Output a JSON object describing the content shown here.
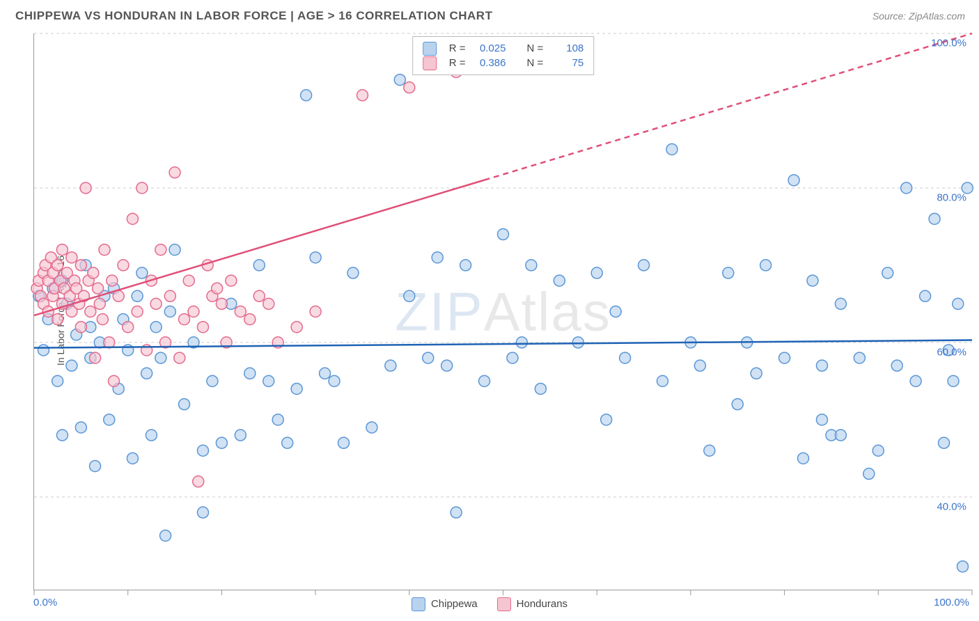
{
  "title": "CHIPPEWA VS HONDURAN IN LABOR FORCE | AGE > 16 CORRELATION CHART",
  "source_label": "Source: ZipAtlas.com",
  "y_axis_label": "In Labor Force | Age > 16",
  "watermark_zip": "ZIP",
  "watermark_atlas": "Atlas",
  "x_min_label": "0.0%",
  "x_max_label": "100.0%",
  "chart": {
    "type": "scatter",
    "background_color": "#ffffff",
    "grid_color": "#cccccc",
    "axis_color": "#999999",
    "xlim": [
      0,
      100
    ],
    "ylim": [
      28,
      100
    ],
    "y_gridlines": [
      40,
      60,
      80,
      100
    ],
    "y_tick_labels": [
      "40.0%",
      "60.0%",
      "80.0%",
      "100.0%"
    ],
    "x_ticks": [
      0,
      10,
      20,
      30,
      40,
      50,
      60,
      70,
      80,
      90,
      100
    ],
    "marker_radius": 8,
    "marker_stroke_width": 1.5,
    "trend_line_width": 2.5,
    "series": [
      {
        "name": "Chippewa",
        "fill_color": "#b9d2ee",
        "stroke_color": "#5a96d6",
        "fill_opacity": 0.65,
        "R": 0.025,
        "N": 108,
        "trend": {
          "x1": 0,
          "y1": 59.3,
          "x2": 100,
          "y2": 60.3,
          "color": "#1f63b5",
          "dash_from_x": null
        },
        "points": [
          [
            0.5,
            66
          ],
          [
            1,
            59
          ],
          [
            1.5,
            63
          ],
          [
            2,
            67
          ],
          [
            2.5,
            55
          ],
          [
            3,
            68
          ],
          [
            3,
            48
          ],
          [
            3.5,
            65
          ],
          [
            4,
            57
          ],
          [
            4.5,
            61
          ],
          [
            5,
            49
          ],
          [
            5.5,
            70
          ],
          [
            6,
            58
          ],
          [
            6,
            62
          ],
          [
            6.5,
            44
          ],
          [
            7,
            60
          ],
          [
            7.5,
            66
          ],
          [
            8,
            50
          ],
          [
            8.5,
            67
          ],
          [
            9,
            54
          ],
          [
            9.5,
            63
          ],
          [
            10,
            59
          ],
          [
            10.5,
            45
          ],
          [
            11,
            66
          ],
          [
            11.5,
            69
          ],
          [
            12,
            56
          ],
          [
            12.5,
            48
          ],
          [
            13,
            62
          ],
          [
            13.5,
            58
          ],
          [
            14,
            35
          ],
          [
            14.5,
            64
          ],
          [
            15,
            72
          ],
          [
            16,
            52
          ],
          [
            17,
            60
          ],
          [
            18,
            46
          ],
          [
            18,
            38
          ],
          [
            19,
            55
          ],
          [
            20,
            47
          ],
          [
            21,
            65
          ],
          [
            22,
            48
          ],
          [
            23,
            56
          ],
          [
            24,
            70
          ],
          [
            25,
            55
          ],
          [
            26,
            50
          ],
          [
            27,
            47
          ],
          [
            28,
            54
          ],
          [
            29,
            92
          ],
          [
            30,
            71
          ],
          [
            31,
            56
          ],
          [
            32,
            55
          ],
          [
            33,
            47
          ],
          [
            34,
            69
          ],
          [
            36,
            49
          ],
          [
            38,
            57
          ],
          [
            39,
            94
          ],
          [
            40,
            66
          ],
          [
            42,
            58
          ],
          [
            43,
            71
          ],
          [
            44,
            57
          ],
          [
            45,
            38
          ],
          [
            46,
            70
          ],
          [
            48,
            55
          ],
          [
            50,
            74
          ],
          [
            51,
            58
          ],
          [
            52,
            60
          ],
          [
            53,
            70
          ],
          [
            54,
            54
          ],
          [
            56,
            68
          ],
          [
            58,
            60
          ],
          [
            60,
            69
          ],
          [
            61,
            50
          ],
          [
            62,
            64
          ],
          [
            63,
            58
          ],
          [
            65,
            70
          ],
          [
            67,
            55
          ],
          [
            68,
            85
          ],
          [
            70,
            60
          ],
          [
            71,
            57
          ],
          [
            72,
            46
          ],
          [
            74,
            69
          ],
          [
            75,
            52
          ],
          [
            76,
            60
          ],
          [
            77,
            56
          ],
          [
            78,
            70
          ],
          [
            80,
            58
          ],
          [
            81,
            81
          ],
          [
            82,
            45
          ],
          [
            83,
            68
          ],
          [
            84,
            50
          ],
          [
            85,
            48
          ],
          [
            86,
            65
          ],
          [
            88,
            58
          ],
          [
            89,
            43
          ],
          [
            90,
            46
          ],
          [
            91,
            69
          ],
          [
            92,
            57
          ],
          [
            93,
            80
          ],
          [
            94,
            55
          ],
          [
            95,
            66
          ],
          [
            96,
            76
          ],
          [
            97,
            47
          ],
          [
            97.5,
            59
          ],
          [
            98,
            55
          ],
          [
            98.5,
            65
          ],
          [
            99,
            31
          ],
          [
            99.5,
            80
          ],
          [
            84,
            57
          ],
          [
            86,
            48
          ]
        ]
      },
      {
        "name": "Hondurans",
        "fill_color": "#f6c5d2",
        "stroke_color": "#e46a8c",
        "fill_opacity": 0.65,
        "R": 0.386,
        "N": 75,
        "trend": {
          "x1": 0,
          "y1": 63.5,
          "x2": 100,
          "y2": 100,
          "color": "#e05078",
          "dash_from_x": 48
        },
        "points": [
          [
            0.3,
            67
          ],
          [
            0.5,
            68
          ],
          [
            0.7,
            66
          ],
          [
            1,
            69
          ],
          [
            1,
            65
          ],
          [
            1.2,
            70
          ],
          [
            1.5,
            64
          ],
          [
            1.5,
            68
          ],
          [
            1.8,
            71
          ],
          [
            2,
            66
          ],
          [
            2,
            69
          ],
          [
            2.2,
            67
          ],
          [
            2.5,
            63
          ],
          [
            2.5,
            70
          ],
          [
            2.8,
            68
          ],
          [
            3,
            65
          ],
          [
            3,
            72
          ],
          [
            3.2,
            67
          ],
          [
            3.5,
            69
          ],
          [
            3.8,
            66
          ],
          [
            4,
            71
          ],
          [
            4,
            64
          ],
          [
            4.3,
            68
          ],
          [
            4.5,
            67
          ],
          [
            4.8,
            65
          ],
          [
            5,
            70
          ],
          [
            5,
            62
          ],
          [
            5.3,
            66
          ],
          [
            5.5,
            80
          ],
          [
            5.8,
            68
          ],
          [
            6,
            64
          ],
          [
            6.3,
            69
          ],
          [
            6.5,
            58
          ],
          [
            6.8,
            67
          ],
          [
            7,
            65
          ],
          [
            7.3,
            63
          ],
          [
            7.5,
            72
          ],
          [
            8,
            60
          ],
          [
            8.3,
            68
          ],
          [
            8.5,
            55
          ],
          [
            9,
            66
          ],
          [
            9.5,
            70
          ],
          [
            10,
            62
          ],
          [
            10.5,
            76
          ],
          [
            11,
            64
          ],
          [
            11.5,
            80
          ],
          [
            12,
            59
          ],
          [
            12.5,
            68
          ],
          [
            13,
            65
          ],
          [
            13.5,
            72
          ],
          [
            14,
            60
          ],
          [
            14.5,
            66
          ],
          [
            15,
            82
          ],
          [
            15.5,
            58
          ],
          [
            16,
            63
          ],
          [
            16.5,
            68
          ],
          [
            17,
            64
          ],
          [
            17.5,
            42
          ],
          [
            18,
            62
          ],
          [
            18.5,
            70
          ],
          [
            19,
            66
          ],
          [
            19.5,
            67
          ],
          [
            20,
            65
          ],
          [
            20.5,
            60
          ],
          [
            21,
            68
          ],
          [
            22,
            64
          ],
          [
            23,
            63
          ],
          [
            24,
            66
          ],
          [
            25,
            65
          ],
          [
            26,
            60
          ],
          [
            28,
            62
          ],
          [
            30,
            64
          ],
          [
            35,
            92
          ],
          [
            40,
            93
          ],
          [
            45,
            95
          ]
        ]
      }
    ]
  },
  "top_legend": {
    "rows": [
      {
        "swatch_fill": "#b9d2ee",
        "swatch_stroke": "#5a96d6",
        "R_label": "R =",
        "R_value": "0.025",
        "N_label": "N =",
        "N_value": "108"
      },
      {
        "swatch_fill": "#f6c5d2",
        "swatch_stroke": "#e46a8c",
        "R_label": "R =",
        "R_value": "0.386",
        "N_label": "N =",
        "N_value": "75"
      }
    ]
  },
  "bottom_legend": {
    "items": [
      {
        "label": "Chippewa",
        "fill": "#b9d2ee",
        "stroke": "#5a96d6"
      },
      {
        "label": "Hondurans",
        "fill": "#f6c5d2",
        "stroke": "#e46a8c"
      }
    ]
  }
}
